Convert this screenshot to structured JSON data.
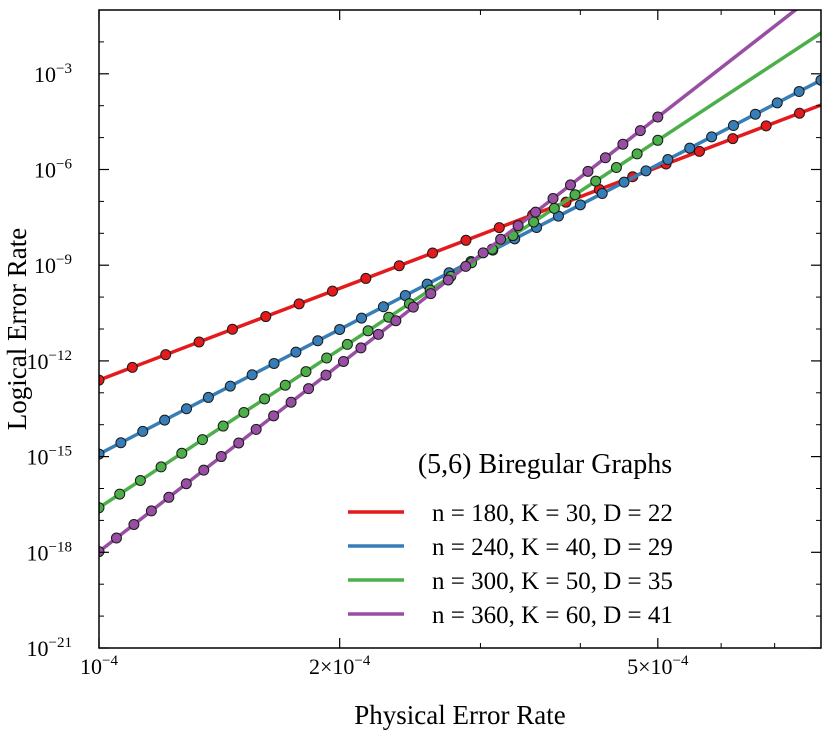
{
  "chart_data": {
    "type": "line",
    "xlabel": "Physical Error Rate",
    "ylabel": "Logical Error Rate",
    "xscale": "log",
    "yscale": "log",
    "xlim": [
      0.0001,
      0.0008
    ],
    "ylim": [
      1e-21,
      0.1
    ],
    "xticks": [
      {
        "value": 0.0001,
        "base": "10",
        "mult": "",
        "exp": "−4"
      },
      {
        "value": 0.0002,
        "base": "10",
        "mult": "2×",
        "exp": "−4"
      },
      {
        "value": 0.0005,
        "base": "10",
        "mult": "5×",
        "exp": "−4"
      }
    ],
    "yticks": [
      {
        "value": 1e-21,
        "base": "10",
        "exp": "−21"
      },
      {
        "value": 1e-18,
        "base": "10",
        "exp": "−18"
      },
      {
        "value": 1e-15,
        "base": "10",
        "exp": "−15"
      },
      {
        "value": 1e-12,
        "base": "10",
        "exp": "−12"
      },
      {
        "value": 1e-09,
        "base": "10",
        "exp": "−9"
      },
      {
        "value": 1e-06,
        "base": "10",
        "exp": "−6"
      },
      {
        "value": 0.001,
        "base": "10",
        "exp": "−3"
      }
    ],
    "legend_title": "(5,6) Biregular Graphs",
    "legend_location": "lower-right",
    "series": [
      {
        "name": "n = 180, K = 30, D = 22",
        "color": "#e41a1c",
        "line": {
          "x": [
            0.0001,
            0.0008
          ],
          "y": [
            2.5e-13,
            0.000105
          ]
        },
        "points": {
          "x_start": 0.0001,
          "x_end": 0.000752,
          "count": 22
        }
      },
      {
        "name": "n = 240, K = 40, D = 29",
        "color": "#377eb8",
        "line": {
          "x": [
            0.0001,
            0.0008
          ],
          "y": [
            1.2e-15,
            0.00063
          ]
        },
        "points": {
          "x_start": 0.0001,
          "x_end": 0.0008,
          "count": 34
        }
      },
      {
        "name": "n = 300, K = 50, D = 35",
        "color": "#4daf4a",
        "line": {
          "x": [
            0.0001,
            0.0008
          ],
          "y": [
            2.5e-17,
            0.019
          ]
        },
        "points": {
          "x_start": 0.0001,
          "x_end": 0.0005,
          "count": 28
        }
      },
      {
        "name": "n = 360, K = 60, D = 41",
        "color": "#984ea3",
        "line": {
          "x": [
            0.0001,
            0.0008
          ],
          "y": [
            1.05e-18,
            0.42
          ]
        },
        "points": {
          "x_start": 0.0001,
          "x_end": 0.0005,
          "count": 33
        }
      }
    ]
  }
}
